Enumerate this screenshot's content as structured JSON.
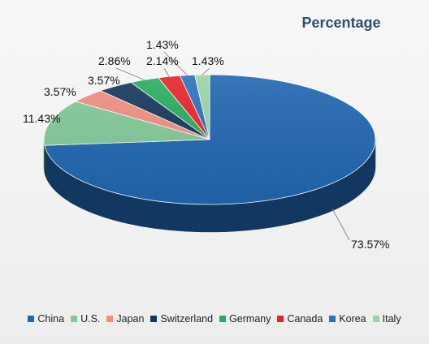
{
  "chart_data": {
    "type": "pie",
    "title": "Percentage",
    "categories": [
      "China",
      "U.S.",
      "Japan",
      "Switzerland",
      "Germany",
      "Canada",
      "Korea",
      "Italy"
    ],
    "values": [
      73.57,
      11.43,
      3.57,
      3.57,
      2.86,
      2.14,
      1.43,
      1.43
    ],
    "labels": [
      "73.57%",
      "11.43%",
      "3.57%",
      "3.57%",
      "2.86%",
      "2.14%",
      "1.43%",
      "1.43%"
    ],
    "colors": [
      "#2166b0",
      "#82c998",
      "#ef8f80",
      "#17375e",
      "#27ad5e",
      "#e8232b",
      "#2a72bf",
      "#9bd3a6"
    ],
    "style": "3D",
    "legend_position": "bottom"
  }
}
